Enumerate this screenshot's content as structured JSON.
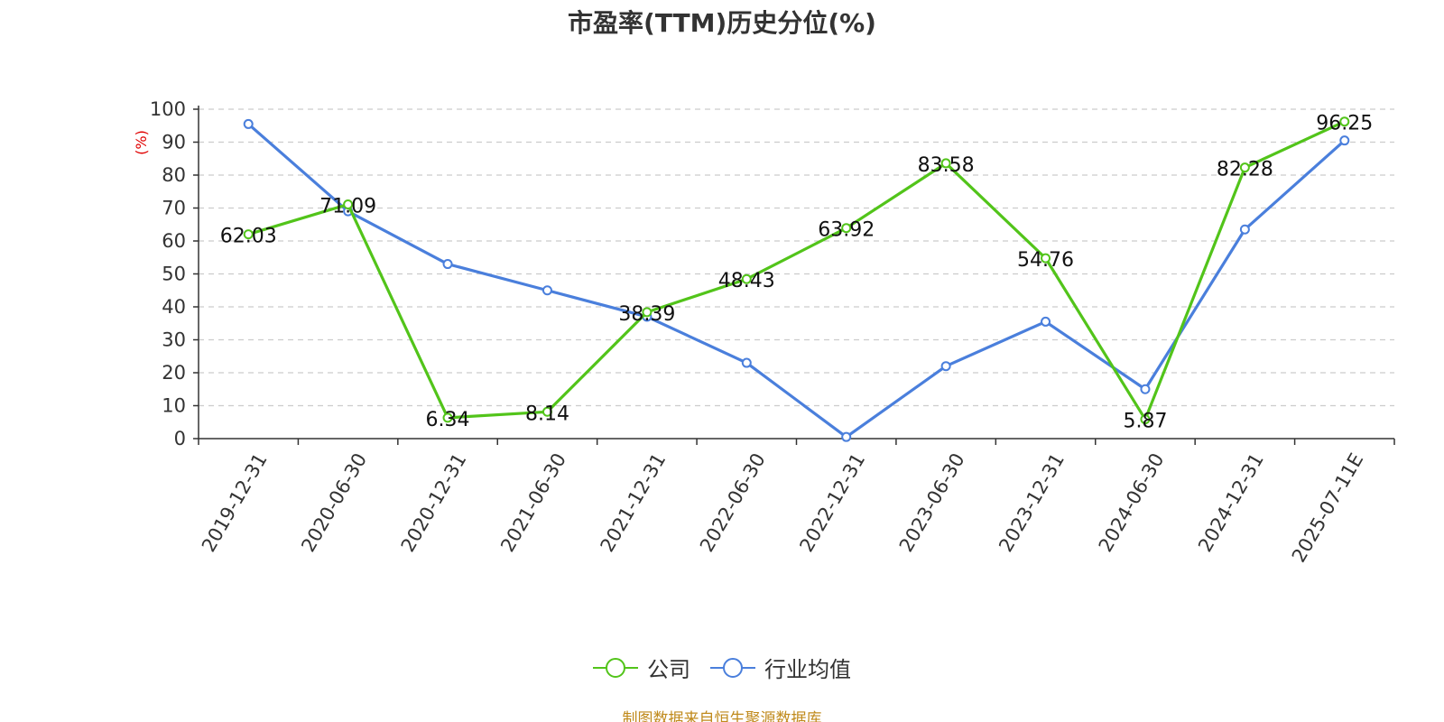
{
  "colors": {
    "company": "#52c41a",
    "industry": "#4a7fdc",
    "axis": "#333333",
    "grid": "#cccccc",
    "unit": "#e00000",
    "source": "#c08a1c"
  },
  "legend": {
    "company_label": "公司",
    "industry_label": "行业均值"
  },
  "source_text": "制图数据来自恒生聚源数据库",
  "chart_data": {
    "type": "line",
    "title": "市盈率(TTM)历史分位(%)",
    "ylabel": "(%)",
    "xlabel": "",
    "ylim": [
      0,
      100
    ],
    "yticks": [
      0,
      10,
      20,
      30,
      40,
      50,
      60,
      70,
      80,
      90,
      100
    ],
    "grid": true,
    "legend_position": "bottom",
    "categories": [
      "2019-12-31",
      "2020-06-30",
      "2020-12-31",
      "2021-06-30",
      "2021-12-31",
      "2022-06-30",
      "2022-12-31",
      "2023-06-30",
      "2023-12-31",
      "2024-06-30",
      "2024-12-31",
      "2025-07-11E"
    ],
    "series": [
      {
        "name": "公司",
        "values": [
          62.03,
          71.09,
          6.34,
          8.14,
          38.39,
          48.43,
          63.92,
          83.58,
          54.76,
          5.87,
          82.28,
          96.25
        ],
        "labels": [
          "62.03",
          "71.09",
          "6.34",
          "8.14",
          "38.39",
          "48.43",
          "63.92",
          "83.58",
          "54.76",
          "5.87",
          "82.28",
          "96.25"
        ]
      },
      {
        "name": "行业均值",
        "values": [
          95.5,
          69.0,
          53.0,
          45.0,
          37.0,
          23.0,
          0.5,
          22.0,
          35.5,
          15.0,
          63.5,
          90.5
        ]
      }
    ]
  }
}
